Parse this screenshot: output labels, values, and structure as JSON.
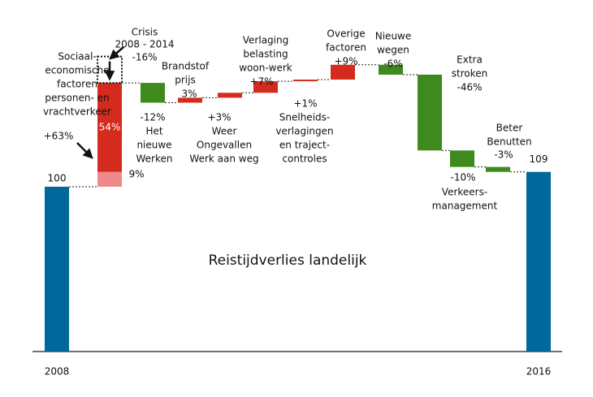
{
  "chart_data": {
    "type": "waterfall",
    "title": "Reistijdverlies landelijk",
    "colors": {
      "total": "#01689b",
      "increase": "#d52b1e",
      "decrease": "#3f8a1c",
      "segment": "#f08a8a"
    },
    "ylim": [
      0,
      200
    ],
    "start": {
      "label": "2008",
      "value": 100
    },
    "end": {
      "label": "2016",
      "value": 109
    },
    "steps": [
      {
        "name": [
          "Sociaal-",
          "economische",
          "factoren",
          "personen- en",
          "vrachtverkeer"
        ],
        "value": 63,
        "value_label": "+63%",
        "segments": [
          {
            "value": 9,
            "value_label": "9%"
          },
          {
            "value": 54,
            "value_label": "54%"
          }
        ],
        "annotation": {
          "text": [
            "Crisis",
            "2008 - 2014"
          ],
          "value": -16,
          "value_label": "-16%"
        }
      },
      {
        "name": [
          "Het",
          "nieuwe",
          "Werken"
        ],
        "value": -12,
        "value_label": "-12%"
      },
      {
        "name": [
          "Brandstof",
          "prijs"
        ],
        "value": 3,
        "value_label": "3%"
      },
      {
        "name": [
          "Weer",
          "Ongevallen",
          "Werk aan weg"
        ],
        "value": 3,
        "value_label": "+3%"
      },
      {
        "name": [
          "Verlaging",
          "belasting",
          "woon-werk"
        ],
        "value": 7,
        "value_label": "+7%"
      },
      {
        "name": [
          "Snelheids-",
          "verlagingen",
          "en traject-",
          "controles"
        ],
        "value": 1,
        "value_label": "+1%"
      },
      {
        "name": [
          "Overige",
          "factoren"
        ],
        "value": 9,
        "value_label": "+9%"
      },
      {
        "name": [
          "Nieuwe",
          "wegen"
        ],
        "value": -6,
        "value_label": "-6%"
      },
      {
        "name": [
          "Extra",
          "stroken"
        ],
        "value": -46,
        "value_label": "-46%"
      },
      {
        "name": [
          "Verkeers-",
          "management"
        ],
        "value": -10,
        "value_label": "-10%"
      },
      {
        "name": [
          "Beter",
          "Benutten"
        ],
        "value": -3,
        "value_label": "-3%"
      }
    ]
  }
}
